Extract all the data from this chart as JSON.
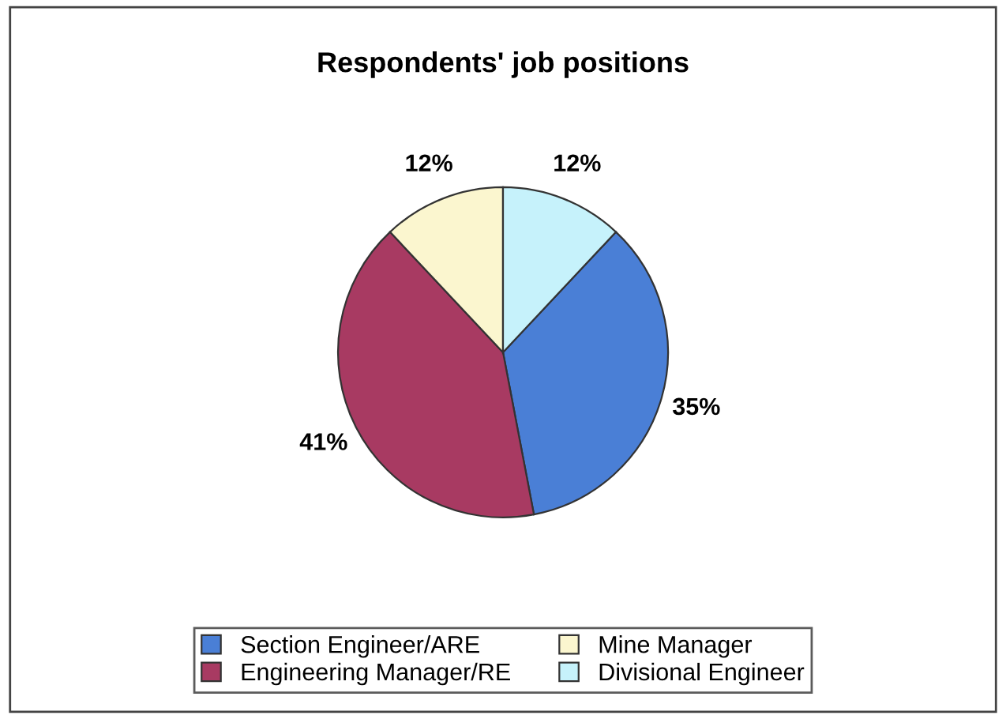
{
  "chart_data": {
    "type": "pie",
    "title": "Respondents' job positions",
    "categories": [
      "Section Engineer/ARE",
      "Engineering Manager/RE",
      "Mine Manager",
      "Divisional Engineer"
    ],
    "values": [
      35,
      41,
      12,
      12
    ],
    "value_labels": [
      "35%",
      "41%",
      "12%",
      "12%"
    ],
    "colors": [
      "#4a7fd6",
      "#a83a62",
      "#fbf6cf",
      "#c6f2fb"
    ],
    "legend": "bottom"
  }
}
